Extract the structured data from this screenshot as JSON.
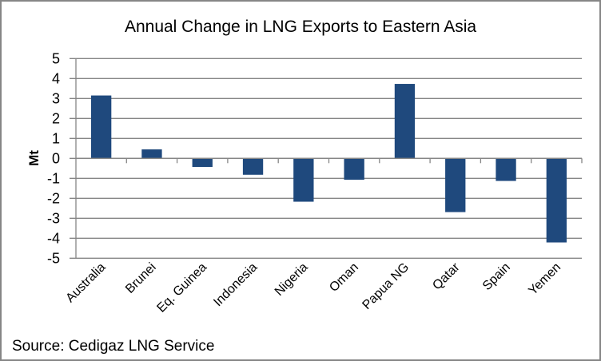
{
  "chart_data": {
    "type": "bar",
    "title": "Annual Change in LNG Exports to Eastern Asia",
    "xlabel": "",
    "ylabel": "Mt",
    "categories": [
      "Australia",
      "Brunei",
      "Eq. Guinea",
      "Indonesia",
      "Nigeria",
      "Oman",
      "Papua NG",
      "Qatar",
      "Spain",
      "Yemen"
    ],
    "values": [
      3.15,
      0.45,
      -0.43,
      -0.82,
      -2.17,
      -1.07,
      3.73,
      -2.69,
      -1.13,
      -4.21
    ],
    "ylim": [
      -5,
      5
    ],
    "yticks": [
      5,
      4,
      3,
      2,
      1,
      0,
      -1,
      -2,
      -3,
      -4,
      -5
    ],
    "ytick_labels": [
      "5",
      "4",
      "3",
      "2",
      "1",
      "0",
      "-1",
      "-2",
      "-3",
      "-4",
      "-5"
    ],
    "grid": true,
    "legend": "none",
    "bar_color": "#1F497D",
    "gridline_color": "#868686",
    "annotation": "Source: Cedigaz LNG Service"
  }
}
